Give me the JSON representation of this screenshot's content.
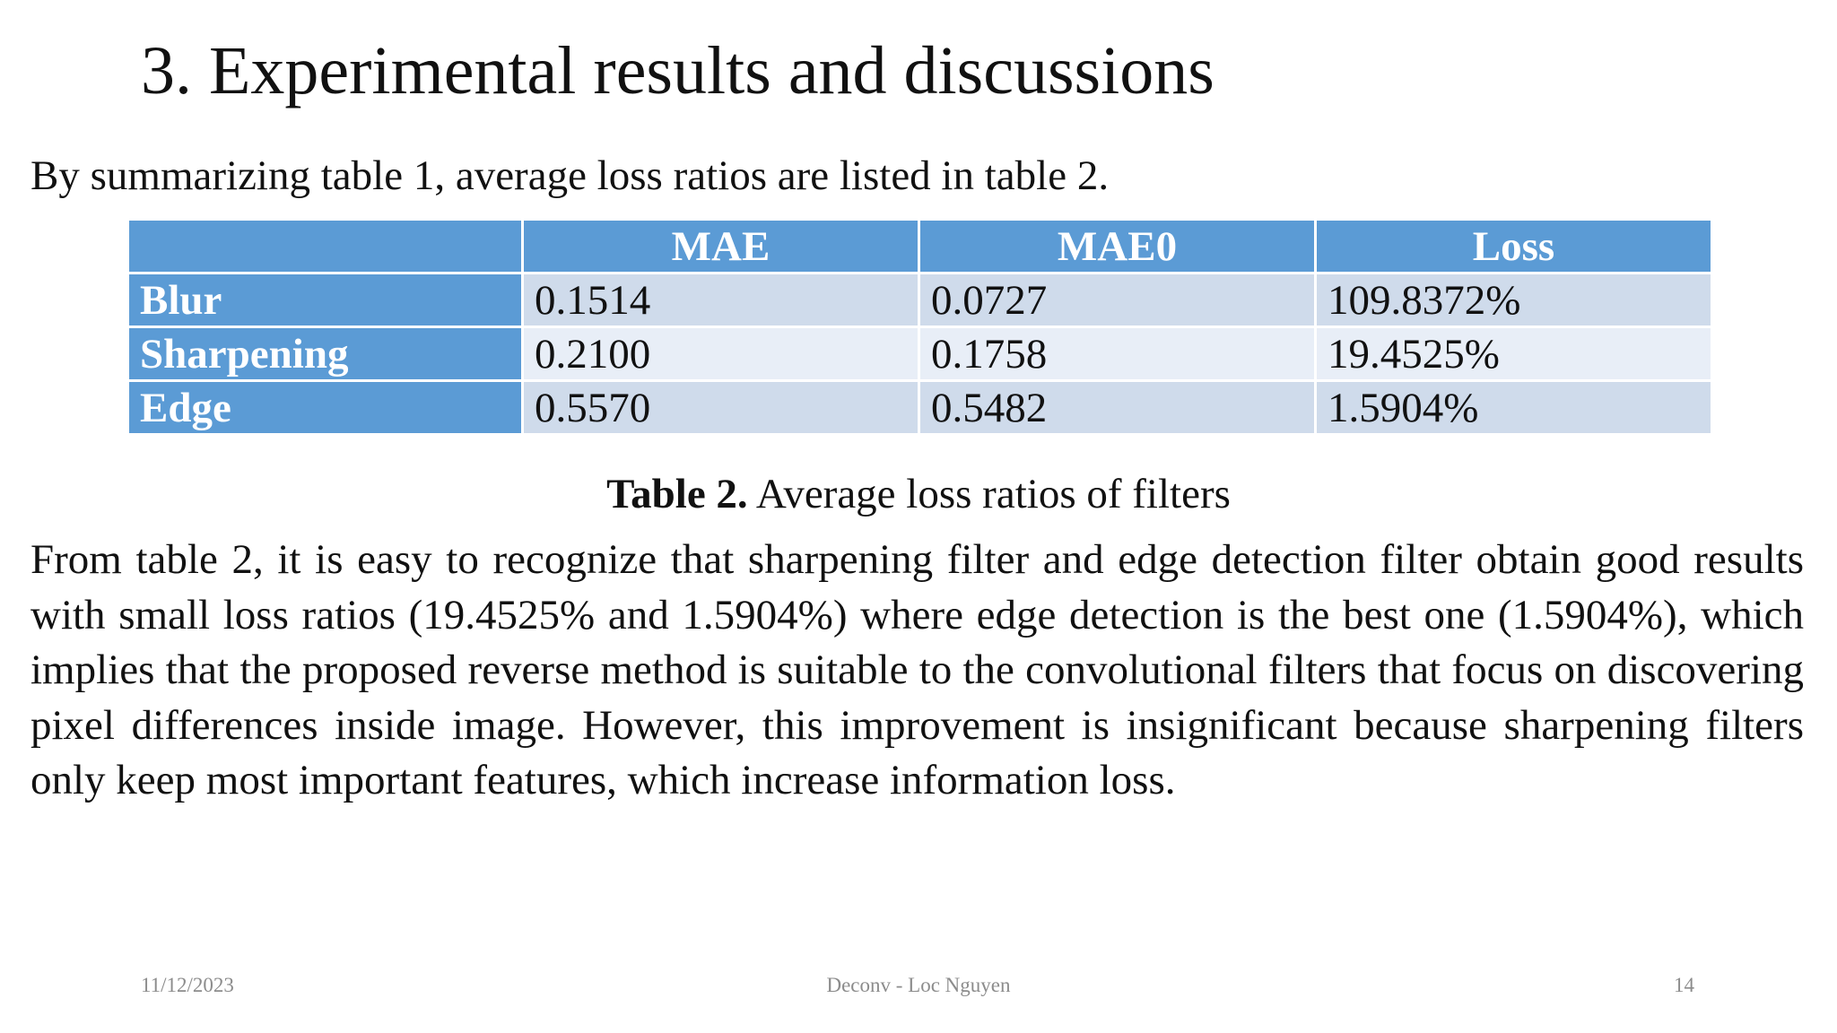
{
  "header": {
    "title": "3. Experimental results and discussions"
  },
  "intro": "By summarizing table 1, average loss ratios are listed in table 2.",
  "table": {
    "columns": [
      "MAE",
      "MAE0",
      "Loss"
    ],
    "rows": [
      [
        "Blur",
        "0.1514",
        "0.0727",
        "109.8372%"
      ],
      [
        "Sharpening",
        "0.2100",
        "0.1758",
        "19.4525%"
      ],
      [
        "Edge",
        "0.5570",
        "0.5482",
        "1.5904%"
      ]
    ],
    "caption": {
      "label": "Table 2.",
      "text": "Average loss ratios of filters"
    }
  },
  "paragraph": "From table 2, it is easy to recognize that sharpening filter and edge detection filter obtain good results with small loss ratios (19.4525% and 1.5904%) where edge detection is the best one (1.5904%), which implies that the proposed reverse method is suitable to the convolutional filters that focus on discovering pixel differences inside image. However, this improvement is insignificant because sharpening filters only keep most important features, which increase information loss.",
  "footer": {
    "date": "11/12/2023",
    "center": "Deconv - Loc Nguyen",
    "page": "14"
  }
}
